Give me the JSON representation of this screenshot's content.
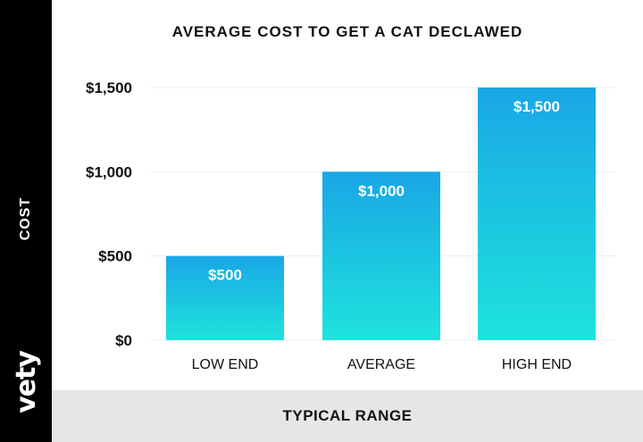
{
  "chart_data": {
    "type": "bar",
    "title": "AVERAGE COST TO GET A CAT DECLAWED",
    "xlabel": "TYPICAL RANGE",
    "ylabel": "COST",
    "categories": [
      "LOW END",
      "AVERAGE",
      "HIGH END"
    ],
    "values": [
      500,
      1000,
      1500
    ],
    "data_labels": [
      "$500",
      "$1,000",
      "$1,500"
    ],
    "yticks": [
      0,
      500,
      1000,
      1500
    ],
    "ytick_labels": [
      "$0",
      "$500",
      "$1,000",
      "$1,500"
    ],
    "ylim": [
      0,
      1500
    ],
    "grid": true,
    "legend": "none",
    "colors": {
      "bar_top": "#1aa6e6",
      "bar_bottom": "#1ee3dc"
    }
  },
  "brand": {
    "logo_text": "vety",
    "logo_icon": "paw-icon"
  }
}
